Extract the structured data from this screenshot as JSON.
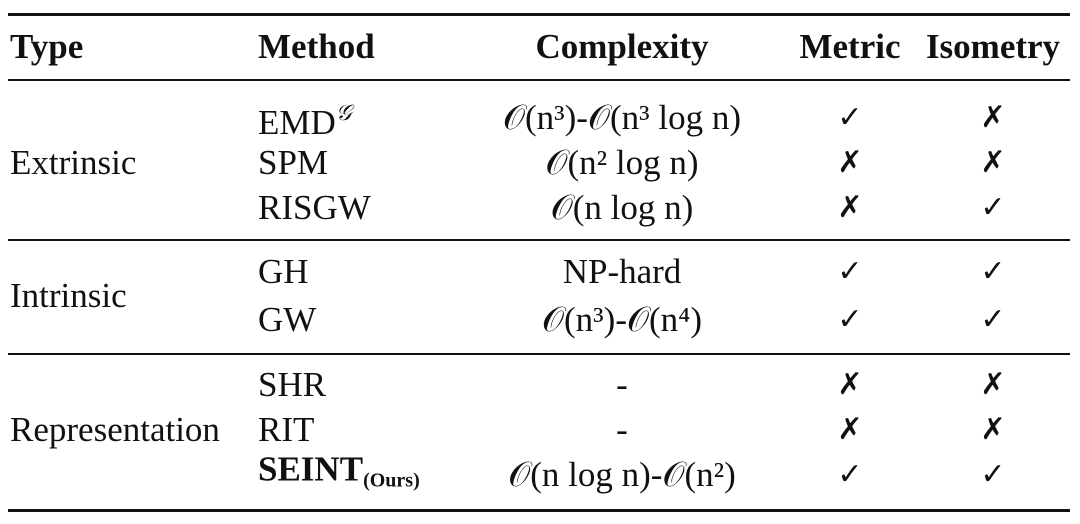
{
  "table": {
    "header": [
      "Type",
      "Method",
      "Complexity",
      "Metric",
      "Isometry"
    ],
    "groups": [
      {
        "type": "Extrinsic",
        "rows": [
          {
            "method": "EMD",
            "method_sup": "𝒢",
            "complexity": "𝒪(n³)-𝒪(n³ log n)",
            "metric": "✓",
            "isometry": "✗"
          },
          {
            "method": "SPM",
            "complexity": "𝒪(n² log n)",
            "metric": "✗",
            "isometry": "✗"
          },
          {
            "method": "RISGW",
            "complexity": "𝒪(n log n)",
            "metric": "✗",
            "isometry": "✓"
          }
        ]
      },
      {
        "type": "Intrinsic",
        "rows": [
          {
            "method": "GH",
            "complexity": "NP-hard",
            "metric": "✓",
            "isometry": "✓"
          },
          {
            "method": "GW",
            "complexity": "𝒪(n³)-𝒪(n⁴)",
            "metric": "✓",
            "isometry": "✓"
          }
        ]
      },
      {
        "type": "Representation",
        "rows": [
          {
            "method": "SHR",
            "complexity": "-",
            "metric": "✗",
            "isometry": "✗"
          },
          {
            "method": "RIT",
            "complexity": "-",
            "metric": "✗",
            "isometry": "✗"
          },
          {
            "method": "SEINT",
            "method_sub": "(Ours)",
            "method_bold": true,
            "complexity": "𝒪(n log n)-𝒪(n²)",
            "metric": "✓",
            "isometry": "✓"
          }
        ]
      }
    ]
  }
}
